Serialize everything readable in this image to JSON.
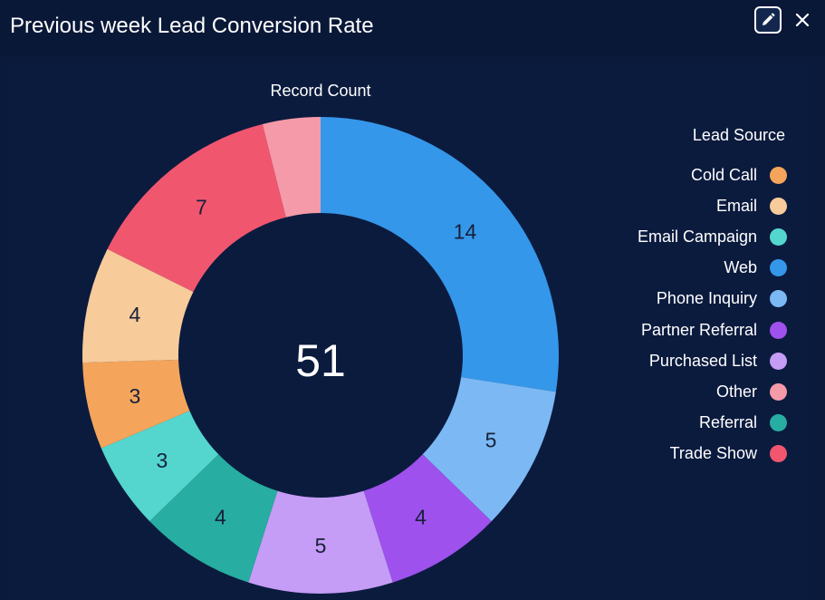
{
  "header": {
    "title": "Previous week Lead Conversion Rate"
  },
  "icons": {
    "edit": "pencil-icon",
    "close": "close-icon"
  },
  "chart_data": {
    "type": "donut",
    "title": "Record Count",
    "total": "51",
    "legend_title": "Lead Source",
    "legend_position": "right",
    "segments": [
      {
        "name": "Web",
        "value": 14,
        "color": "#3597ea"
      },
      {
        "name": "Phone Inquiry",
        "value": 5,
        "color": "#7cb9f4"
      },
      {
        "name": "Partner Referral",
        "value": 4,
        "color": "#9e51ec"
      },
      {
        "name": "Purchased List",
        "value": 5,
        "color": "#c59cf6"
      },
      {
        "name": "Referral",
        "value": 4,
        "color": "#27ada1"
      },
      {
        "name": "Email Campaign",
        "value": 3,
        "color": "#54d6ce"
      },
      {
        "name": "Cold Call",
        "value": 3,
        "color": "#f4a55b"
      },
      {
        "name": "Email",
        "value": 4,
        "color": "#f8cb9b"
      },
      {
        "name": "Trade Show",
        "value": 7,
        "color": "#f1566f"
      },
      {
        "name": "Other",
        "value": 2,
        "color": "#f59aa8"
      }
    ],
    "legend": [
      {
        "name": "Cold Call",
        "color": "#f4a55b"
      },
      {
        "name": "Email",
        "color": "#f8cb9b"
      },
      {
        "name": "Email Campaign",
        "color": "#54d6ce"
      },
      {
        "name": "Web",
        "color": "#3597ea"
      },
      {
        "name": "Phone Inquiry",
        "color": "#7cb9f4"
      },
      {
        "name": "Partner Referral",
        "color": "#9e51ec"
      },
      {
        "name": "Purchased List",
        "color": "#c59cf6"
      },
      {
        "name": "Other",
        "color": "#f59aa8"
      },
      {
        "name": "Referral",
        "color": "#27ada1"
      },
      {
        "name": "Trade Show",
        "color": "#f1566f"
      }
    ]
  }
}
